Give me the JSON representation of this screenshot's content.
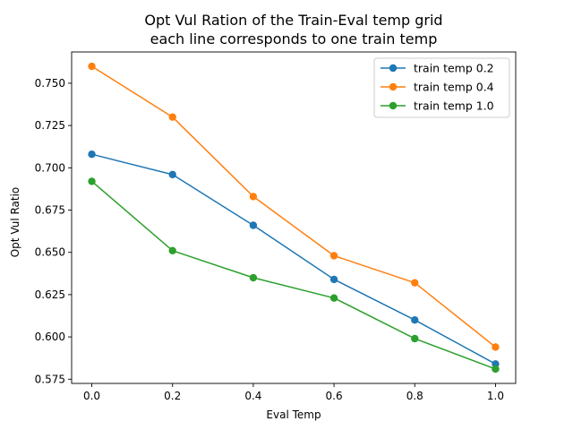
{
  "chart_data": {
    "type": "line",
    "title": "Opt Vul Ration of the Train-Eval temp grid",
    "subtitle": "each line corresponds to one train temp",
    "xlabel": "Eval Temp",
    "ylabel": "Opt Vul Ratio",
    "xlim": [
      -0.05,
      1.05
    ],
    "ylim": [
      0.5725,
      0.7685
    ],
    "x_ticks": [
      0.0,
      0.2,
      0.4,
      0.6,
      0.8,
      1.0
    ],
    "x_tick_labels": [
      "0.0",
      "0.2",
      "0.4",
      "0.6",
      "0.8",
      "1.0"
    ],
    "y_ticks": [
      0.575,
      0.6,
      0.625,
      0.65,
      0.675,
      0.7,
      0.725,
      0.75
    ],
    "y_tick_labels": [
      "0.575",
      "0.600",
      "0.625",
      "0.650",
      "0.675",
      "0.700",
      "0.725",
      "0.750"
    ],
    "grid": false,
    "legend_position": "top-right",
    "x": [
      0.0,
      0.2,
      0.4,
      0.6,
      0.8,
      1.0
    ],
    "series": [
      {
        "name": "train temp 0.2",
        "color": "#1f77b4",
        "values": [
          0.708,
          0.696,
          0.666,
          0.634,
          0.61,
          0.584
        ]
      },
      {
        "name": "train temp 0.4",
        "color": "#ff7f0e",
        "values": [
          0.76,
          0.73,
          0.683,
          0.648,
          0.632,
          0.594
        ]
      },
      {
        "name": "train temp 1.0",
        "color": "#2ca02c",
        "values": [
          0.692,
          0.651,
          0.635,
          0.623,
          0.599,
          0.581
        ]
      }
    ]
  }
}
